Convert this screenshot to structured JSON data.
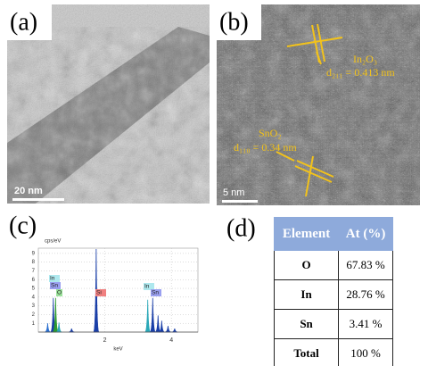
{
  "panels": {
    "a": {
      "label": "(a)",
      "scale_bar": "20 nm"
    },
    "b": {
      "label": "(b)",
      "scale_bar": "5 nm",
      "annotations": [
        "In₂O₃",
        "d₂₁₁ = 0.413 nm",
        "SnO₂",
        "d₁₁₀ = 0.34 nm"
      ]
    },
    "c": {
      "label": "(c)",
      "chart": {
        "type": "spectrum",
        "y_label": "cps/eV",
        "x_label": "keV",
        "xlim": [
          0,
          4.8
        ],
        "ylim": [
          0,
          9.6
        ],
        "xticks": [
          2,
          4
        ],
        "yticks": [
          1,
          2,
          3,
          4,
          5,
          6,
          7,
          8,
          9
        ],
        "grid": true,
        "peaks": [
          {
            "x": 0.28,
            "y": 1.0,
            "color": "#2a6fd0"
          },
          {
            "x": 0.45,
            "y": 3.9,
            "color": "#1a3fa8"
          },
          {
            "x": 0.52,
            "y": 3.9,
            "color": "#2e9b2e"
          },
          {
            "x": 0.62,
            "y": 1.1,
            "color": "#2aa8b8"
          },
          {
            "x": 1.0,
            "y": 0.4,
            "color": "#1a3fa8"
          },
          {
            "x": 1.74,
            "y": 9.5,
            "color": "#1a3fa8"
          },
          {
            "x": 3.29,
            "y": 3.7,
            "color": "#2aa8b8"
          },
          {
            "x": 3.44,
            "y": 3.9,
            "color": "#1a3fa8"
          },
          {
            "x": 3.6,
            "y": 1.9,
            "color": "#1a3fa8"
          },
          {
            "x": 3.71,
            "y": 1.3,
            "color": "#1a3fa8"
          },
          {
            "x": 3.9,
            "y": 0.7,
            "color": "#1a3fa8"
          },
          {
            "x": 4.1,
            "y": 0.4,
            "color": "#1a3fa8"
          }
        ],
        "peak_labels": [
          {
            "text": "In",
            "color": "#aee8ee"
          },
          {
            "text": "Sn",
            "color": "#9aa0f0"
          },
          {
            "text": "O",
            "color": "#9be29b"
          },
          {
            "text": "Si",
            "color": "#f08080"
          },
          {
            "text": "In",
            "color": "#aee8ee"
          },
          {
            "text": "Sn",
            "color": "#9aa0f0"
          }
        ]
      }
    },
    "d": {
      "label": "(d)",
      "table": {
        "header": [
          "Element",
          "At (%)"
        ],
        "rows": [
          [
            "O",
            "67.83 %"
          ],
          [
            "In",
            "28.76 %"
          ],
          [
            "Sn",
            "3.41 %"
          ],
          [
            "Total",
            "100 %"
          ]
        ]
      }
    }
  }
}
